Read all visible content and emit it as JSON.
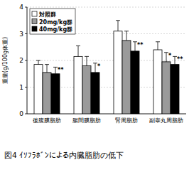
{
  "chart_data": {
    "type": "bar",
    "title": "図4 ｲｿﾌﾗﾎﾞﾝによる内臓脂肪の低下",
    "y_label": "重量(g/100g体重)",
    "categories": [
      "後腹膜脂肪",
      "腸間膜脂肪",
      "腎周脂肪",
      "副睾丸周脂肪"
    ],
    "series": [
      {
        "name": "対照群",
        "color": "#ffffff",
        "values": [
          1.85,
          2.15,
          3.1,
          2.4
        ],
        "errors": [
          0.15,
          0.4,
          0.4,
          0.3
        ],
        "significance": [
          null,
          null,
          null,
          null
        ]
      },
      {
        "name": "20mg/kg群",
        "color": "#9a9a9a",
        "values": [
          1.55,
          1.8,
          2.75,
          1.95
        ],
        "errors": [
          0.3,
          0.35,
          0.35,
          0.35
        ],
        "significance": [
          null,
          null,
          null,
          "*"
        ]
      },
      {
        "name": "40mg/kg群",
        "color": "#000000",
        "values": [
          1.5,
          1.55,
          2.35,
          1.85
        ],
        "errors": [
          0.25,
          0.35,
          0.35,
          0.3
        ],
        "significance": [
          "**",
          "*",
          "**",
          "**"
        ]
      }
    ],
    "ylim": [
      0,
      4
    ],
    "yticks": [
      0,
      1,
      2,
      3,
      4
    ],
    "grid": true,
    "legend": "upper left"
  }
}
